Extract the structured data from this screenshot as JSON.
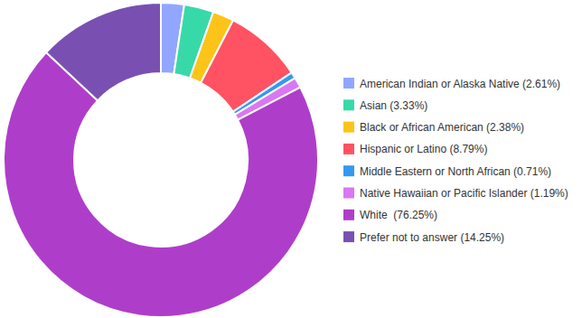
{
  "chart_data": {
    "type": "pie",
    "categories": [
      "American Indian or Alaska Native (2.61%)",
      "Asian (3.33%)",
      "Black or African American (2.38%)",
      "Hispanic or Latino (8.79%)",
      "Middle Eastern or North African (0.71%)",
      "Native Hawaiian or Pacific Islander (1.19%)",
      "White  (76.25%)",
      "Prefer not to answer (14.25%)"
    ],
    "values": [
      2.61,
      3.33,
      2.38,
      8.79,
      0.71,
      1.19,
      76.25,
      14.25
    ],
    "colors": [
      "#91a7ff",
      "#38d9a9",
      "#fcc419",
      "#ff5263",
      "#339af0",
      "#da77f2",
      "#ae3ec9",
      "#7950b2"
    ],
    "legend": "right"
  }
}
